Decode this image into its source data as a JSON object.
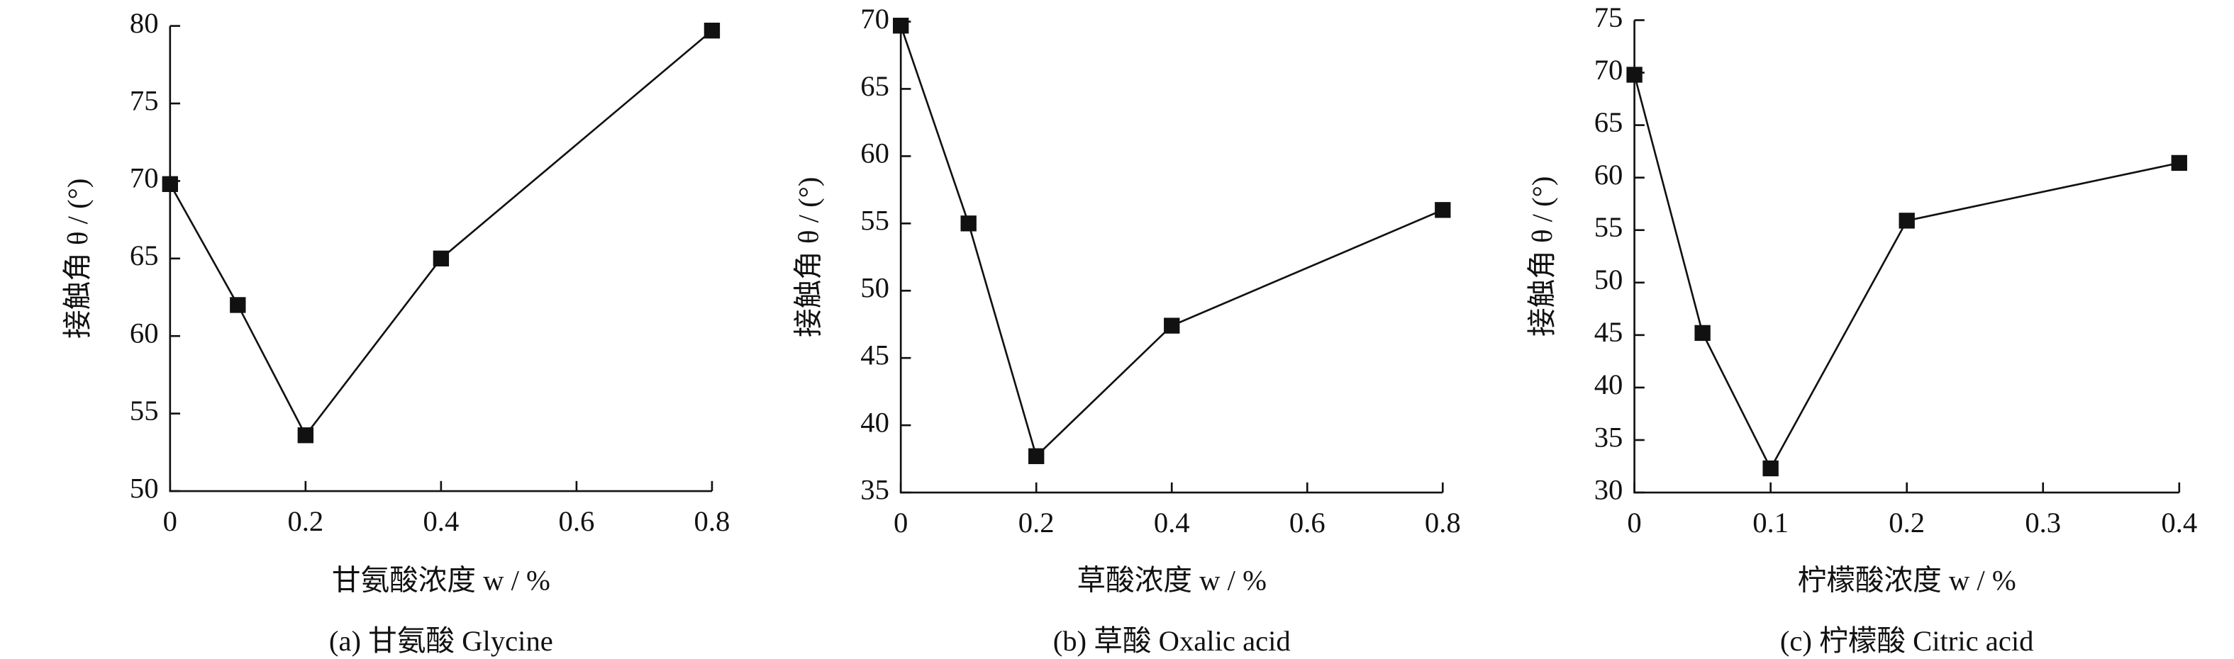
{
  "chart_data": [
    {
      "type": "line",
      "title": "(a) 甘氨酸 Glycine",
      "x_label": "甘氨酸浓度 w / %",
      "y_label": "接触角 θ / (°)",
      "x": [
        0,
        0.1,
        0.2,
        0.4,
        0.8
      ],
      "values": [
        69.8,
        62,
        53.6,
        65,
        79.7
      ],
      "color": "#111111",
      "xlim": [
        0,
        0.8
      ],
      "xticks": [
        0,
        0.2,
        0.4,
        0.6,
        0.8
      ],
      "ylim": [
        50,
        80
      ],
      "yticks": [
        50,
        55,
        60,
        65,
        70,
        75,
        80
      ]
    },
    {
      "type": "line",
      "title": "(b) 草酸 Oxalic acid",
      "x_label": "草酸浓度 w / %",
      "y_label": "接触角 θ / (°)",
      "x": [
        0,
        0.1,
        0.2,
        0.4,
        0.8
      ],
      "values": [
        69.7,
        55,
        37.7,
        47.4,
        56
      ],
      "color": "#111111",
      "xlim": [
        0,
        0.8
      ],
      "xticks": [
        0,
        0.2,
        0.4,
        0.6,
        0.8
      ],
      "ylim": [
        35,
        70
      ],
      "yticks": [
        35,
        40,
        45,
        50,
        55,
        60,
        65,
        70
      ]
    },
    {
      "type": "line",
      "title": "(c) 柠檬酸 Citric acid",
      "x_label": "柠檬酸浓度 w / %",
      "y_label": "接触角 θ / (°)",
      "x": [
        0,
        0.05,
        0.1,
        0.2,
        0.4
      ],
      "values": [
        69.8,
        45.2,
        32.3,
        55.9,
        61.4
      ],
      "color": "#111111",
      "xlim": [
        0,
        0.4
      ],
      "xticks": [
        0,
        0.1,
        0.2,
        0.3,
        0.4
      ],
      "ylim": [
        30,
        75
      ],
      "yticks": [
        30,
        35,
        40,
        45,
        50,
        55,
        60,
        65,
        70,
        75
      ]
    }
  ]
}
